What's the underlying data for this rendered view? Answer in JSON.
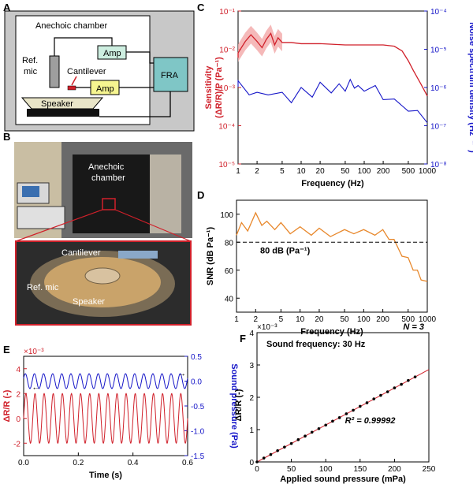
{
  "panels": {
    "a": "A",
    "b": "B",
    "c": "C",
    "d": "D",
    "e": "E",
    "f": "F"
  },
  "diagram": {
    "anechoic_chamber": "Anechoic chamber",
    "amp_top": "Amp",
    "ref_mic": "Ref.\nmic",
    "cantilever": "Cantilever",
    "amp_bottom": "Amp",
    "fra": "FRA",
    "speaker": "Speaker"
  },
  "photo": {
    "anechoic_chamber": "Anechoic\nchamber",
    "cantilever": "Cantilever",
    "ref_mic": "Ref. mic",
    "speaker": "Speaker"
  },
  "chart_data": [
    {
      "id": "C",
      "type": "line",
      "xscale": "log",
      "xlim": [
        1,
        1000
      ],
      "xticks": [
        "1",
        "2",
        "5",
        "10",
        "20",
        "50",
        "100",
        "200",
        "500",
        "1000"
      ],
      "xlabel": "Frequency (Hz)",
      "ylabel_left": "Sensitivity\n(ΔR/R)/P (Pa⁻¹)",
      "ylabel_right": "Noise spectrum density (Hz⁻¹ᐟ²)",
      "ylim_left": [
        1e-05,
        0.1
      ],
      "ylim_right": [
        1e-08,
        0.0001
      ],
      "yticks_left": [
        "10⁻⁵",
        "10⁻⁴",
        "10⁻³",
        "10⁻²",
        "10⁻¹"
      ],
      "yticks_right": [
        "10⁻⁸",
        "10⁻⁷",
        "10⁻⁶",
        "10⁻⁵",
        "10⁻⁴"
      ],
      "series": [
        {
          "axis": "left",
          "color": "#d0202a",
          "x": [
            0.8,
            1,
            1.3,
            1.6,
            2,
            2.4,
            2.8,
            3.3,
            3.8,
            4.3,
            5,
            7,
            10,
            20,
            50,
            100,
            200,
            300,
            400,
            500,
            600,
            800,
            1000
          ],
          "y": [
            0.006,
            0.008,
            0.016,
            0.024,
            0.016,
            0.011,
            0.018,
            0.026,
            0.013,
            0.02,
            0.015,
            0.015,
            0.014,
            0.014,
            0.013,
            0.013,
            0.013,
            0.012,
            0.009,
            0.005,
            0.0028,
            0.0012,
            0.0006
          ]
        },
        {
          "axis": "right",
          "color": "#1515c8",
          "x": [
            0.8,
            1,
            1.5,
            2,
            3,
            5,
            7,
            10,
            15,
            20,
            30,
            40,
            50,
            60,
            70,
            80,
            100,
            150,
            200,
            300,
            500,
            700,
            1000
          ],
          "y": [
            1.3e-06,
            1.2e-06,
            8e-07,
            6e-07,
            8e-07,
            6e-07,
            5e-07,
            8e-07,
            7e-07,
            1.1e-06,
            9e-07,
            1e-06,
            1e-06,
            1.3e-06,
            1.2e-06,
            9e-07,
            1e-06,
            9e-07,
            6e-07,
            4e-07,
            3e-07,
            2e-07,
            1.5e-07
          ]
        }
      ]
    },
    {
      "id": "D",
      "type": "line",
      "xscale": "log",
      "xlim": [
        1,
        1000
      ],
      "xticks": [
        "1",
        "2",
        "5",
        "10",
        "20",
        "50",
        "100",
        "200",
        "500",
        "1000"
      ],
      "xlabel": "Frequency (Hz)",
      "ylabel": "SNR (dB Pa⁻¹)",
      "ylim": [
        30,
        110
      ],
      "yticks": [
        "40",
        "60",
        "80",
        "100"
      ],
      "annotation": "80 dB (Pa⁻¹)",
      "threshold": 80,
      "series": [
        {
          "color_below": "#e8882c",
          "color_above": "#e8882c",
          "x": [
            1,
            1.2,
            1.5,
            2,
            2.5,
            3,
            4,
            5,
            7,
            10,
            15,
            20,
            30,
            50,
            70,
            100,
            150,
            200,
            250,
            300,
            400,
            500,
            600,
            700,
            800,
            1000
          ],
          "y": [
            87,
            92,
            90,
            99,
            94,
            93,
            91,
            92,
            88,
            89,
            87,
            88,
            86,
            87,
            88,
            87,
            87,
            87,
            84,
            80,
            72,
            67,
            62,
            58,
            55,
            50
          ]
        }
      ]
    },
    {
      "id": "E",
      "type": "line",
      "xlim": [
        0,
        0.6
      ],
      "xticks": [
        "0.0",
        "0.2",
        "0.4",
        "0.6"
      ],
      "xlabel": "Time (s)",
      "ylabel_left": "ΔR/R (-)",
      "multiplier_left": "×10⁻³",
      "ylim_left": [
        -3,
        5
      ],
      "yticks_left": [
        "-2",
        "0",
        "2",
        "4"
      ],
      "ylabel_right": "Sound pressure (Pa)",
      "ylim_right": [
        -1.5,
        0.5
      ],
      "yticks_right": [
        "0.5",
        "0.0",
        "-0.5",
        "-1.0",
        "-1.5"
      ],
      "frequency_hz": 30,
      "series": [
        {
          "name": "",
          "axis": "left",
          "color": "#d0202a",
          "offset": 0,
          "amplitude": 2
        },
        {
          "name": "",
          "axis": "right",
          "color": "#1515c8",
          "offset": 0,
          "amplitude": 0.15
        }
      ]
    },
    {
      "id": "F",
      "type": "scatter",
      "xlim": [
        0,
        250
      ],
      "xticks": [
        "0",
        "50",
        "100",
        "150",
        "200",
        "250"
      ],
      "xlabel": "Applied sound pressure (mPa)",
      "ylabel": "ΔR/R (-)",
      "multiplier": "×10⁻³",
      "ylim": [
        0,
        4
      ],
      "yticks": [
        "0",
        "1",
        "2",
        "3",
        "4"
      ],
      "n_label": "N = 3",
      "freq_label": "Sound frequency: 30 Hz",
      "r2_label": "R² = 0.99992",
      "x": [
        0,
        10,
        20,
        30,
        40,
        50,
        60,
        70,
        80,
        90,
        100,
        110,
        120,
        130,
        140,
        150,
        160,
        170,
        180,
        190,
        200,
        210,
        220,
        230
      ],
      "y": [
        0,
        0.12,
        0.23,
        0.35,
        0.46,
        0.57,
        0.69,
        0.8,
        0.92,
        1.03,
        1.14,
        1.26,
        1.37,
        1.49,
        1.6,
        1.72,
        1.83,
        1.95,
        2.06,
        2.17,
        2.29,
        2.4,
        2.52,
        2.63
      ],
      "fit_color": "#d0202a"
    }
  ],
  "colors": {
    "red": "#d0202a",
    "blue": "#1515c8",
    "orange": "#e8882c",
    "amp_fill": "#f6f590",
    "amp_top_fill": "#cdeee0",
    "fra_fill": "#7fc6c6"
  }
}
